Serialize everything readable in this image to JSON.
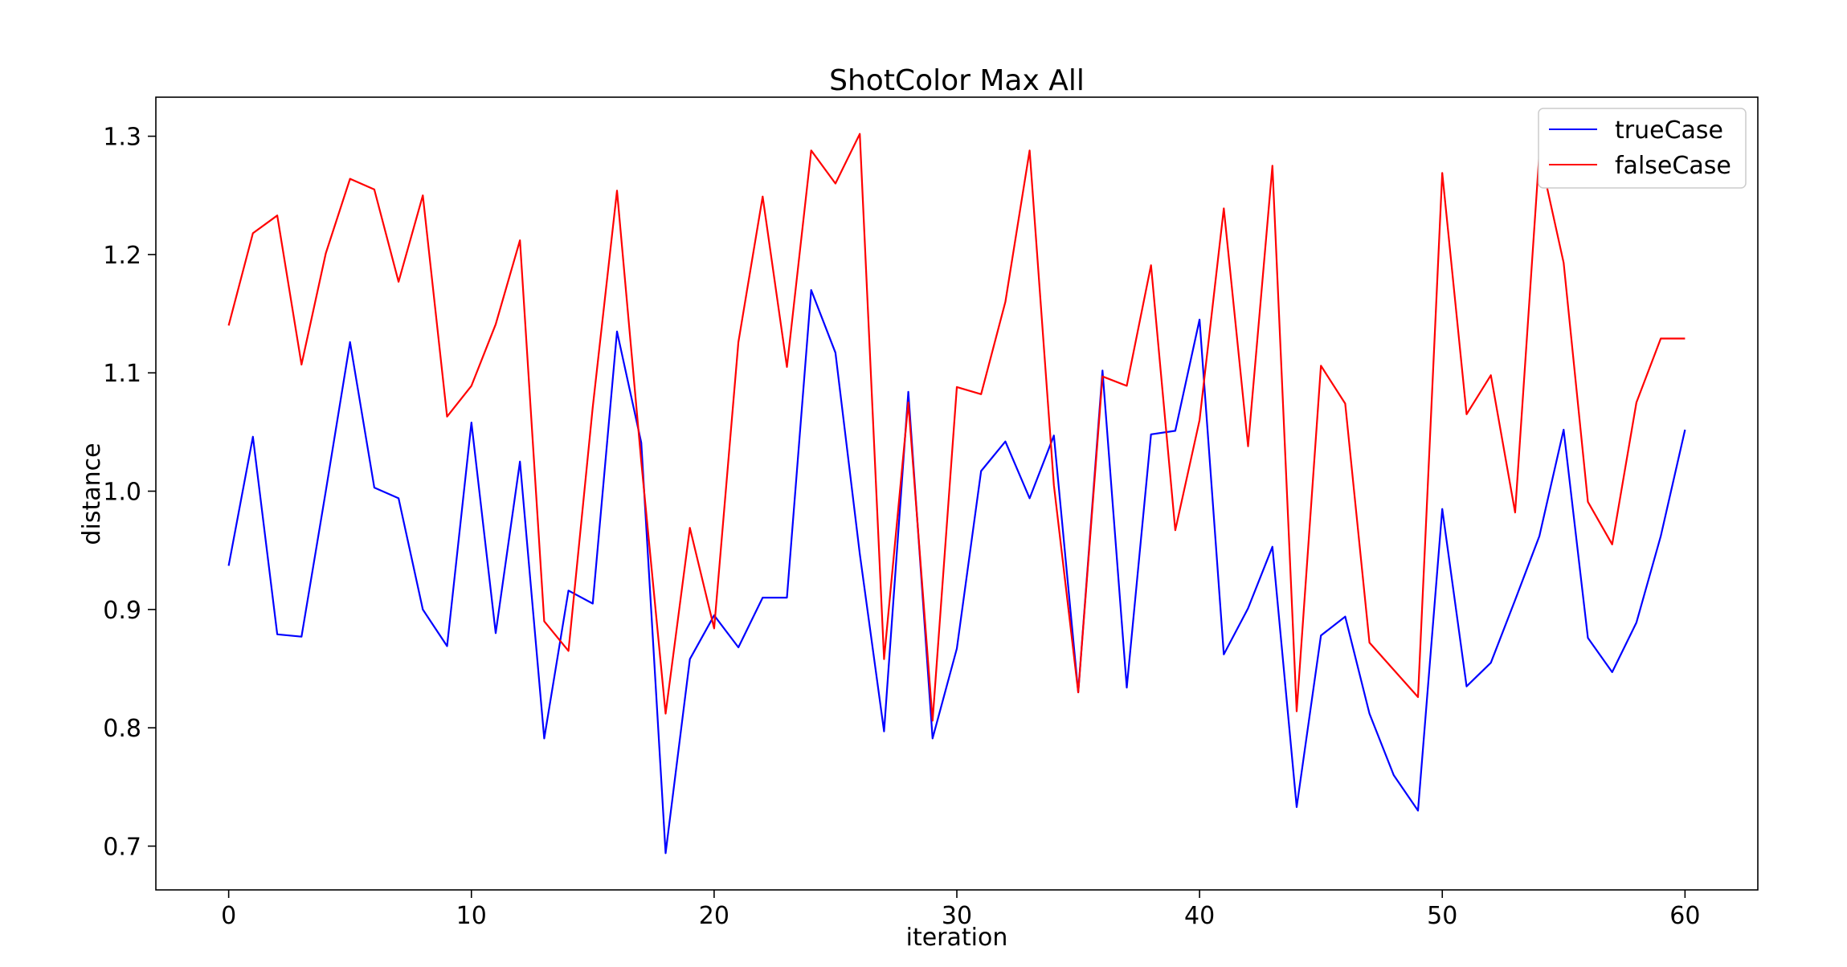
{
  "chart_data": {
    "type": "line",
    "title": "ShotColor Max All",
    "xlabel": "iteration",
    "ylabel": "distance",
    "xlim": [
      -3,
      63
    ],
    "ylim": [
      0.663,
      1.333
    ],
    "xticks": [
      0,
      10,
      20,
      30,
      40,
      50,
      60
    ],
    "yticks": [
      0.7,
      0.8,
      0.9,
      1.0,
      1.1,
      1.2,
      1.3
    ],
    "xtick_labels": [
      "0",
      "10",
      "20",
      "30",
      "40",
      "50",
      "60"
    ],
    "ytick_labels": [
      "0.7",
      "0.8",
      "0.9",
      "1.0",
      "1.1",
      "1.2",
      "1.3"
    ],
    "grid": false,
    "legend_position": "top-right",
    "x": [
      0,
      1,
      2,
      3,
      4,
      5,
      6,
      7,
      8,
      9,
      10,
      11,
      12,
      13,
      14,
      15,
      16,
      17,
      18,
      19,
      20,
      21,
      22,
      23,
      24,
      25,
      26,
      27,
      28,
      29,
      30,
      31,
      32,
      33,
      34,
      35,
      36,
      37,
      38,
      39,
      40,
      41,
      42,
      43,
      44,
      45,
      46,
      47,
      48,
      49,
      50,
      51,
      52,
      53,
      54,
      55,
      56,
      57,
      58,
      59,
      60
    ],
    "series": [
      {
        "name": "trueCase",
        "color": "#0000ff",
        "values": [
          0.937,
          1.046,
          0.879,
          0.877,
          1.0,
          1.126,
          1.003,
          0.994,
          0.9,
          0.869,
          1.058,
          0.88,
          1.025,
          0.791,
          0.916,
          0.905,
          1.135,
          1.041,
          0.694,
          0.858,
          0.895,
          0.868,
          0.91,
          0.91,
          1.17,
          1.117,
          0.947,
          0.797,
          1.084,
          0.791,
          0.867,
          1.017,
          1.042,
          0.994,
          1.047,
          0.83,
          1.102,
          0.834,
          1.048,
          1.051,
          1.145,
          0.862,
          0.901,
          0.953,
          0.733,
          0.878,
          0.894,
          0.812,
          0.76,
          0.73,
          0.985,
          0.835,
          0.855,
          0.908,
          0.962,
          1.052,
          0.876,
          0.847,
          0.889,
          0.962,
          1.052
        ]
      },
      {
        "name": "falseCase",
        "color": "#ff0000",
        "values": [
          1.14,
          1.218,
          1.233,
          1.107,
          1.201,
          1.264,
          1.255,
          1.177,
          1.25,
          1.063,
          1.089,
          1.141,
          1.212,
          0.89,
          0.865,
          1.071,
          1.254,
          1.025,
          0.812,
          0.969,
          0.884,
          1.126,
          1.249,
          1.105,
          1.288,
          1.26,
          1.302,
          0.858,
          1.075,
          0.806,
          1.088,
          1.082,
          1.16,
          1.288,
          1.005,
          0.83,
          1.097,
          1.089,
          1.191,
          0.967,
          1.06,
          1.239,
          1.038,
          1.275,
          0.814,
          1.106,
          1.074,
          0.872,
          0.849,
          0.826,
          1.269,
          1.065,
          1.098,
          0.982,
          1.286,
          1.193,
          0.991,
          0.955,
          1.075,
          1.129,
          1.129
        ]
      }
    ]
  }
}
